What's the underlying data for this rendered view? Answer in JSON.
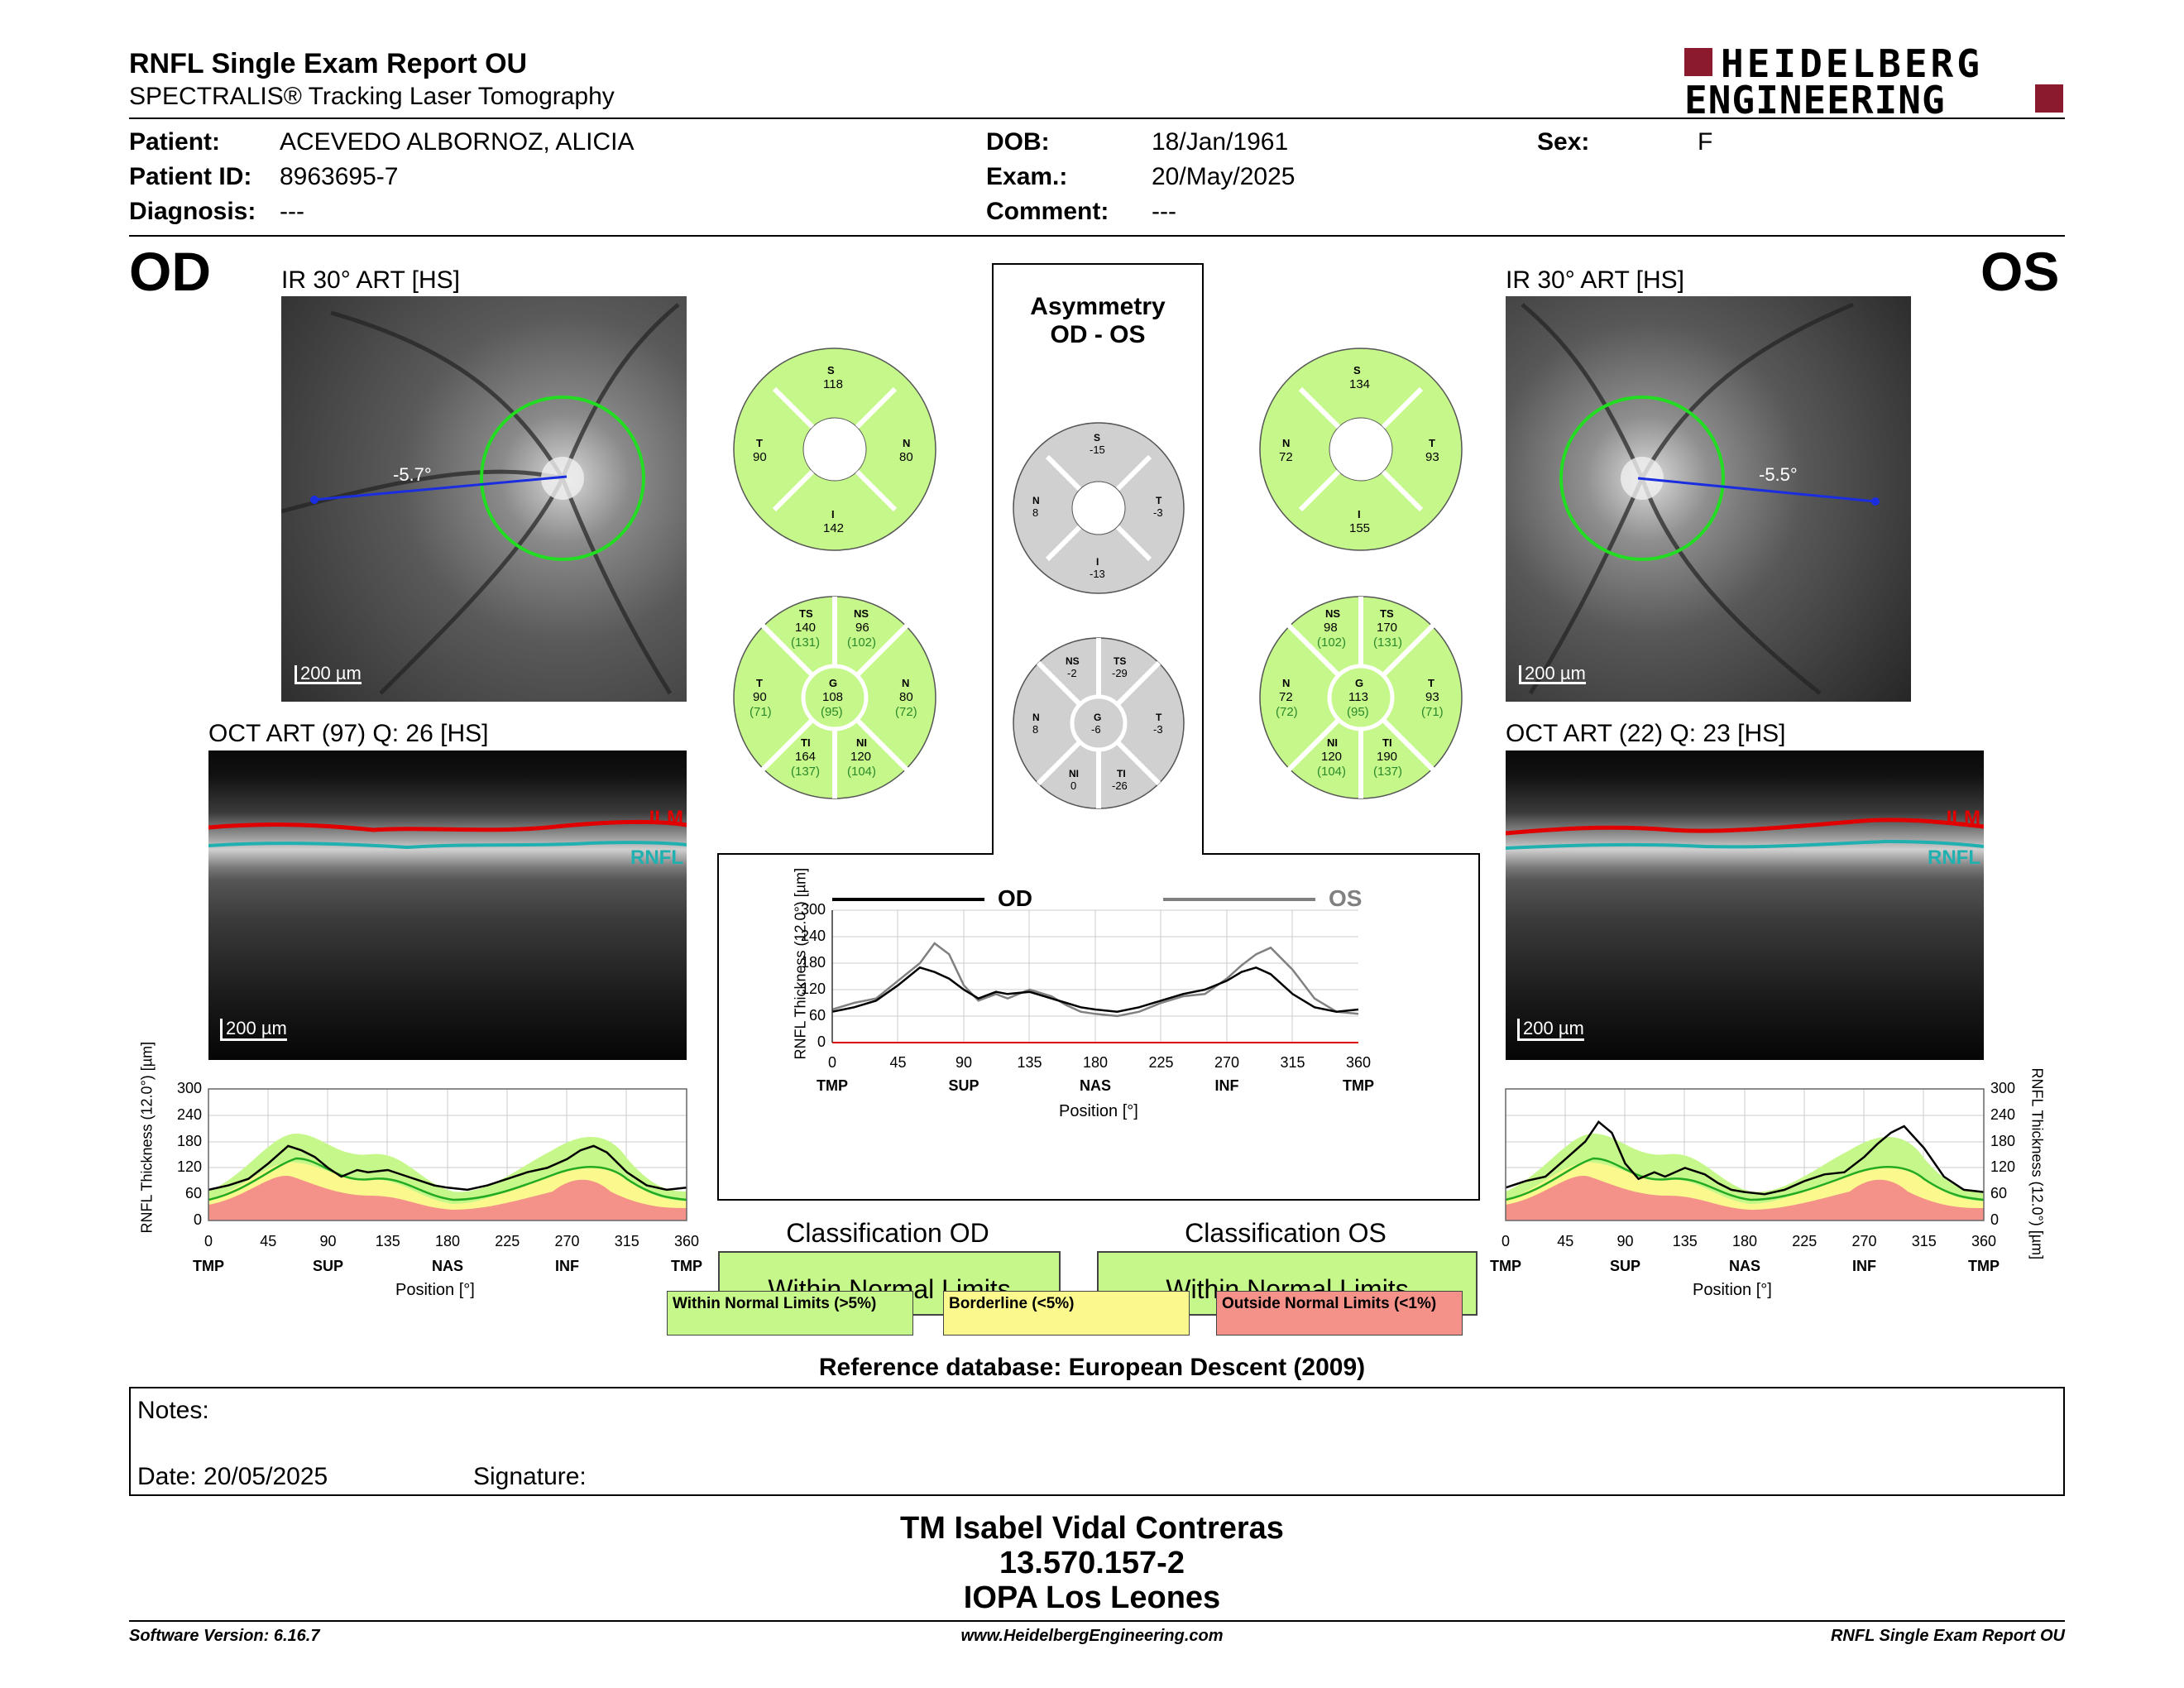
{
  "header": {
    "title": "RNFL Single Exam Report OU",
    "subtitle": "SPECTRALIS® Tracking Laser Tomography",
    "logo_line1": "HEIDELBERG",
    "logo_line2": "ENGINEERING"
  },
  "patient": {
    "patient_label": "Patient:",
    "patient_value": "ACEVEDO ALBORNOZ, ALICIA",
    "id_label": "Patient ID:",
    "id_value": "8963695-7",
    "diagnosis_label": "Diagnosis:",
    "diagnosis_value": "---",
    "dob_label": "DOB:",
    "dob_value": "18/Jan/1961",
    "exam_label": "Exam.:",
    "exam_value": "20/May/2025",
    "comment_label": "Comment:",
    "comment_value": "---",
    "sex_label": "Sex:",
    "sex_value": "F"
  },
  "od": {
    "eye": "OD",
    "ir_label": "IR 30° ART [HS]",
    "angle": "-5.7°",
    "scale": "200 µm",
    "oct_label": "OCT ART (97) Q: 26 [HS]",
    "oct_scale": "200 µm",
    "ilm": "ILM",
    "rnfl": "RNFL",
    "sectors": {
      "S": "S",
      "S_val": "118",
      "T": "T",
      "T_val": "90",
      "N": "N",
      "N_val": "80",
      "I": "I",
      "I_val": "142"
    },
    "six": {
      "TS": "TS",
      "TS_val": "140",
      "TS_ref": "(131)",
      "NS": "NS",
      "NS_val": "96",
      "NS_ref": "(102)",
      "T": "T",
      "T_val": "90",
      "T_ref": "(71)",
      "G": "G",
      "G_val": "108",
      "G_ref": "(95)",
      "N": "N",
      "N_val": "80",
      "N_ref": "(72)",
      "TI": "TI",
      "TI_val": "164",
      "TI_ref": "(137)",
      "NI": "NI",
      "NI_val": "120",
      "NI_ref": "(104)"
    },
    "classification_title": "Classification OD",
    "classification": "Within Normal Limits"
  },
  "os": {
    "eye": "OS",
    "ir_label": "IR 30° ART [HS]",
    "angle": "-5.5°",
    "scale": "200 µm",
    "oct_label": "OCT ART (22) Q: 23 [HS]",
    "oct_scale": "200 µm",
    "ilm": "ILM",
    "rnfl": "RNFL",
    "sectors": {
      "S": "S",
      "S_val": "134",
      "N": "N",
      "N_val": "72",
      "T": "T",
      "T_val": "93",
      "I": "I",
      "I_val": "155"
    },
    "six": {
      "NS": "NS",
      "NS_val": "98",
      "NS_ref": "(102)",
      "TS": "TS",
      "TS_val": "170",
      "TS_ref": "(131)",
      "N": "N",
      "N_val": "72",
      "N_ref": "(72)",
      "G": "G",
      "G_val": "113",
      "G_ref": "(95)",
      "T": "T",
      "T_val": "93",
      "T_ref": "(71)",
      "NI": "NI",
      "NI_val": "120",
      "NI_ref": "(104)",
      "TI": "TI",
      "TI_val": "190",
      "TI_ref": "(137)"
    },
    "classification_title": "Classification OS",
    "classification": "Within Normal Limits"
  },
  "asym": {
    "title1": "Asymmetry",
    "title2": "OD - OS",
    "sectors": {
      "S": "S",
      "S_val": "-15",
      "N": "N",
      "N_val": "8",
      "T": "T",
      "T_val": "-3",
      "I": "I",
      "I_val": "-13"
    },
    "six": {
      "NS": "NS",
      "NS_val": "-2",
      "TS": "TS",
      "TS_val": "-29",
      "N": "N",
      "N_val": "8",
      "G": "G",
      "G_val": "-6",
      "T": "T",
      "T_val": "-3",
      "NI": "NI",
      "NI_val": "0",
      "TI": "TI",
      "TI_val": "-26"
    }
  },
  "legend": {
    "wnl": "Within Normal Limits (>5%)",
    "bl": "Borderline (<5%)",
    "onl": "Outside Normal Limits (<1%)"
  },
  "reference": "Reference database: European Descent (2009)",
  "notes": {
    "label": "Notes:",
    "date": "Date: 20/05/2025",
    "signature": "Signature:"
  },
  "signer": {
    "name": "TM Isabel Vidal Contreras",
    "id": "13.570.157-2",
    "org": "IOPA Los Leones"
  },
  "footer": {
    "version": "Software Version: 6.16.7",
    "url": "www.HeidelbergEngineering.com",
    "report": "RNFL Single Exam Report OU"
  },
  "colors": {
    "wnl": "#c6f78a",
    "bl": "#fbf98e",
    "onl": "#f4928a",
    "od_line": "#000000",
    "os_line": "#808080",
    "ilm": "#e00000",
    "rnfl": "#20b0b0",
    "brand": "#8b1a2e"
  },
  "chart_data": [
    {
      "type": "line",
      "title": "",
      "series": [
        {
          "name": "OD",
          "x": [
            0,
            15,
            30,
            45,
            60,
            70,
            80,
            90,
            100,
            112,
            120,
            135,
            150,
            160,
            170,
            180,
            195,
            210,
            225,
            240,
            255,
            270,
            280,
            290,
            300,
            315,
            330,
            345,
            360
          ],
          "y": [
            70,
            80,
            95,
            130,
            170,
            160,
            145,
            120,
            100,
            115,
            110,
            115,
            100,
            90,
            80,
            75,
            70,
            80,
            95,
            110,
            120,
            140,
            160,
            170,
            155,
            110,
            80,
            70,
            75
          ]
        },
        {
          "name": "OS",
          "x": [
            0,
            15,
            30,
            45,
            60,
            70,
            80,
            90,
            100,
            112,
            120,
            135,
            150,
            160,
            170,
            180,
            195,
            210,
            225,
            240,
            255,
            270,
            280,
            290,
            300,
            315,
            330,
            345,
            360
          ],
          "y": [
            75,
            90,
            100,
            140,
            180,
            225,
            200,
            130,
            95,
            110,
            100,
            120,
            105,
            85,
            70,
            65,
            60,
            70,
            90,
            105,
            110,
            145,
            175,
            200,
            215,
            165,
            100,
            70,
            65
          ]
        }
      ],
      "xlabel": "Position [°]",
      "ylabel": "RNFL Thickness (12.0°) [µm]",
      "xticks": [
        "0",
        "45",
        "90",
        "135",
        "180",
        "225",
        "270",
        "315",
        "360"
      ],
      "xcats": [
        "TMP",
        "SUP",
        "NAS",
        "INF",
        "TMP"
      ],
      "yticks": [
        "0",
        "60",
        "120",
        "180",
        "240",
        "300"
      ],
      "xlim": [
        0,
        360
      ],
      "ylim": [
        0,
        300
      ]
    }
  ]
}
